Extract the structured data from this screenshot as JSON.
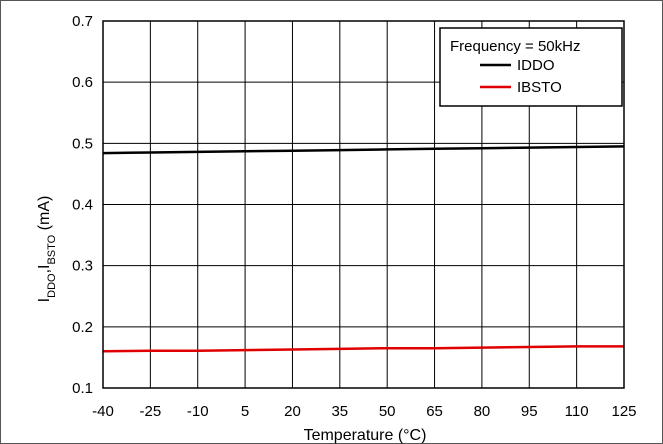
{
  "chart_data": {
    "type": "line",
    "title": "",
    "xlabel": "Temperature (°C)",
    "ylabel": {
      "parts": [
        {
          "text": "I",
          "sub": false
        },
        {
          "text": "DDO",
          "sub": true
        },
        {
          "text": ",I",
          "sub": false
        },
        {
          "text": "BSTO",
          "sub": true
        },
        {
          "text": " (mA)",
          "sub": false
        }
      ]
    },
    "xlim": [
      -40,
      125
    ],
    "ylim": [
      0.1,
      0.7
    ],
    "x_ticks": [
      -40,
      -25,
      -10,
      5,
      20,
      35,
      50,
      65,
      80,
      95,
      110,
      125
    ],
    "x_tick_labels": [
      "-40",
      "-25",
      "-10",
      "5",
      "20",
      "35",
      "50",
      "65",
      "80",
      "95",
      "110",
      "125"
    ],
    "y_ticks": [
      0.1,
      0.2,
      0.3,
      0.4,
      0.5,
      0.6,
      0.7
    ],
    "y_tick_labels": [
      "0.1",
      "0.2",
      "0.3",
      "0.4",
      "0.5",
      "0.6",
      "0.7"
    ],
    "grid": true,
    "legend": {
      "placement": "top-right",
      "title": "Frequency = 50kHz"
    },
    "series": [
      {
        "name": "IDDO",
        "color": "#000000",
        "x": [
          -40,
          -25,
          -10,
          5,
          20,
          35,
          50,
          65,
          80,
          95,
          110,
          125
        ],
        "y": [
          0.484,
          0.485,
          0.486,
          0.487,
          0.488,
          0.489,
          0.49,
          0.491,
          0.492,
          0.493,
          0.494,
          0.495
        ]
      },
      {
        "name": "IBSTO",
        "color": "#e00000",
        "x": [
          -40,
          -25,
          -10,
          5,
          20,
          35,
          50,
          65,
          80,
          95,
          110,
          125
        ],
        "y": [
          0.16,
          0.161,
          0.161,
          0.162,
          0.163,
          0.164,
          0.165,
          0.165,
          0.166,
          0.167,
          0.168,
          0.168
        ]
      }
    ]
  }
}
